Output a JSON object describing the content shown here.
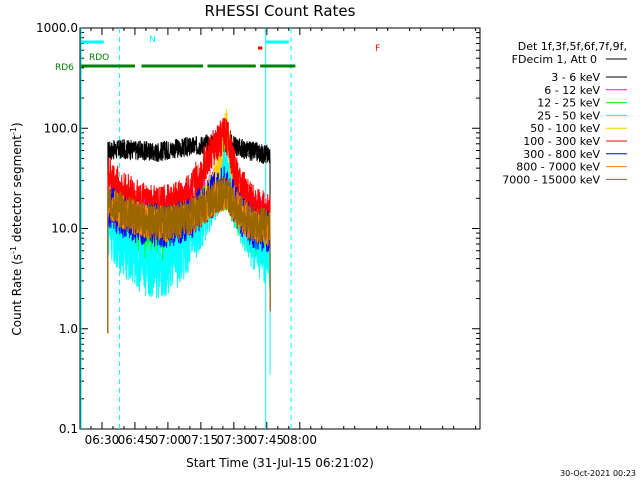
{
  "chart_data": {
    "type": "line",
    "title": "RHESSI Count Rates",
    "xlabel": "Start Time (31-Jul-15 06:21:02)",
    "ylabel": {
      "main": "Count Rate (s",
      "sup": "-1",
      "rest": " detector segment",
      "sup2": "-1",
      "end": ")"
    },
    "xlim_min": [
      20,
      202
    ],
    "x_ticks": [
      {
        "min": 30,
        "label": "06:30"
      },
      {
        "min": 45,
        "label": "06:45"
      },
      {
        "min": 60,
        "label": "07:00"
      },
      {
        "min": 75,
        "label": "07:15"
      },
      {
        "min": 90,
        "label": "07:30"
      },
      {
        "min": 105,
        "label": "07:45"
      },
      {
        "min": 120,
        "label": "08:00"
      }
    ],
    "ylim": [
      0.1,
      1000
    ],
    "y_scale": "log",
    "y_ticks": [
      {
        "value": 0.1,
        "label": "0.1"
      },
      {
        "value": 1,
        "label": "1.0"
      },
      {
        "value": 10,
        "label": "10.0"
      },
      {
        "value": 100,
        "label": "100.0"
      },
      {
        "value": 1000,
        "label": "1000.0"
      }
    ],
    "legend_header": [
      "Det 1f,3f,5f,6f,7f,9f,",
      "FDecim 1, Att 0"
    ],
    "legend_position": "right",
    "series": [
      {
        "name": "3 - 6 keV",
        "color": "#000000",
        "x": [
          32.7,
          40,
          48,
          55,
          62,
          70,
          78,
          84,
          88,
          92,
          96,
          100,
          104,
          106.5
        ],
        "y": [
          60,
          62,
          60,
          58,
          62,
          65,
          70,
          72,
          70,
          65,
          60,
          58,
          55,
          55
        ]
      },
      {
        "name": "6 - 12 keV",
        "color": "#ff00ff",
        "x": [
          32.7,
          35,
          40,
          45,
          50,
          55,
          60,
          65,
          70,
          75,
          80,
          84,
          86,
          88,
          90,
          94,
          98,
          102,
          106.5
        ],
        "y": [
          20,
          18,
          16,
          14,
          12.5,
          12,
          12.5,
          14,
          16,
          19,
          23,
          27,
          30,
          28,
          22,
          16,
          13,
          12,
          12
        ]
      },
      {
        "name": "12 - 25 keV",
        "color": "#00ff00",
        "x": [
          32.7,
          35,
          40,
          45,
          50,
          55,
          60,
          65,
          70,
          75,
          80,
          84,
          86,
          88,
          90,
          94,
          98,
          102,
          106.5
        ],
        "y": [
          15,
          13,
          11,
          9,
          8,
          7.5,
          8,
          9.5,
          12,
          16,
          21,
          24,
          25,
          22,
          17,
          12,
          9,
          7.5,
          6
        ]
      },
      {
        "name": "25 - 50 keV",
        "color": "#00ffff",
        "x": [
          32.7,
          35,
          40,
          45,
          50,
          55,
          60,
          65,
          70,
          75,
          80,
          84,
          86,
          88,
          90,
          94,
          98,
          102,
          106.5
        ],
        "y": [
          11,
          9,
          6.5,
          5,
          4.2,
          4,
          4.2,
          5.2,
          7.5,
          12,
          20,
          30,
          40,
          32,
          22,
          12,
          8,
          6,
          4.5
        ]
      },
      {
        "name": "50 - 100 keV",
        "color": "#ffcc00",
        "x": [
          32.7,
          40,
          50,
          60,
          70,
          75,
          80,
          83,
          85,
          86.5,
          88,
          90,
          95,
          100,
          106.5
        ],
        "y": [
          18,
          14,
          12,
          12,
          14,
          17,
          25,
          40,
          75,
          110,
          60,
          30,
          15,
          11,
          10
        ]
      },
      {
        "name": "100 - 300 keV",
        "color": "#ff0000",
        "x": [
          32.7,
          35,
          40,
          45,
          50,
          55,
          60,
          65,
          70,
          75,
          78,
          82,
          86,
          88,
          90,
          94,
          98,
          102,
          106.5
        ],
        "y": [
          35,
          30,
          24,
          20,
          18,
          17,
          17.5,
          19,
          24,
          35,
          52,
          68,
          95,
          70,
          40,
          25,
          18,
          15.5,
          15
        ]
      },
      {
        "name": "300 - 800 keV",
        "color": "#0000ff",
        "x": [
          32.7,
          40,
          50,
          60,
          70,
          75,
          80,
          84,
          86,
          88,
          90,
          95,
          100,
          106.5
        ],
        "y": [
          17,
          13,
          11,
          10.5,
          12.5,
          16,
          21,
          25,
          27,
          23,
          18,
          12,
          10,
          9.5
        ]
      },
      {
        "name": "800 - 7000 keV",
        "color": "#ff8800",
        "x": [
          32.7,
          40,
          50,
          60,
          70,
          75,
          80,
          84,
          86,
          88,
          90,
          95,
          100,
          106.5
        ],
        "y": [
          19,
          14,
          11.5,
          11,
          12.5,
          15,
          18.5,
          21,
          23,
          21,
          17,
          12.5,
          10.5,
          10
        ]
      },
      {
        "name": "7000 - 15000 keV",
        "color": "#996600",
        "x": [
          32.7,
          40,
          50,
          60,
          70,
          75,
          80,
          84,
          86,
          88,
          90,
          95,
          100,
          106.5
        ],
        "y": [
          19,
          14.5,
          12,
          11.5,
          13,
          15.5,
          19,
          22,
          23,
          21,
          17,
          13,
          11,
          10.5
        ]
      }
    ],
    "attenuator_legend_color": "#000000",
    "attenuator_states": {
      "N": {
        "label": "N",
        "color": "#00ffff",
        "bars": [
          [
            20.5,
            30.8
          ],
          [
            104.5,
            115
          ]
        ]
      },
      "F": {
        "label": "F",
        "color": "#ff0000",
        "bars": [
          [
            101,
            103
          ]
        ]
      },
      "RDO": {
        "label": "RDO",
        "color": "#008000",
        "bars": []
      },
      "RD6": {
        "label": "RD6",
        "color": "#008000",
        "bars": [
          [
            20.5,
            45
          ],
          [
            48,
            76
          ],
          [
            78,
            100
          ],
          [
            102,
            118
          ]
        ]
      }
    },
    "vertical_lines": {
      "solid_cyan": [
        20.5,
        104.5
      ],
      "dashed_cyan": [
        38,
        116
      ]
    },
    "footer_timestamp": "30-Oct-2021 00:23"
  }
}
